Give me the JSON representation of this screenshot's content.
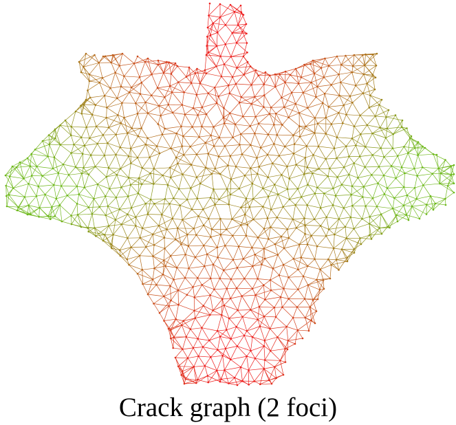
{
  "caption": "Crack graph (2 foci)",
  "graph": {
    "description_of_marks": "triangulated mesh of nodes and edges; color encodes distance from two foci",
    "foci_count": 2,
    "colors": {
      "near_focus": "#ee1c1c",
      "mid": "#b8661a",
      "far": "#6db81a",
      "background": "#ffffff"
    }
  }
}
